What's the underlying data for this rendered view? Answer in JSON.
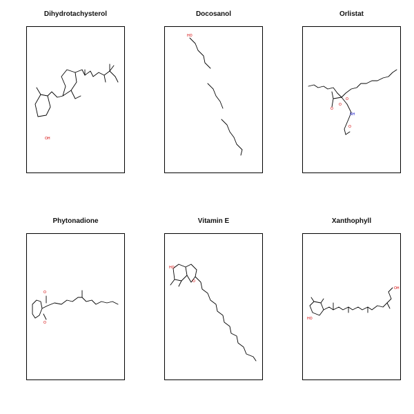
{
  "molecules": [
    {
      "name": "Dihydrotachysterol",
      "atoms": [
        "OH"
      ]
    },
    {
      "name": "Docosanol",
      "atoms": [
        "HO"
      ]
    },
    {
      "name": "Orlistat",
      "atoms": [
        "O",
        "O",
        "O",
        "O",
        "NH"
      ]
    },
    {
      "name": "Phytonadione",
      "atoms": [
        "O",
        "O"
      ]
    },
    {
      "name": "Vitamin E",
      "atoms": [
        "HO",
        "O"
      ]
    },
    {
      "name": "Xanthophyll",
      "atoms": [
        "OH",
        "HO"
      ]
    }
  ]
}
